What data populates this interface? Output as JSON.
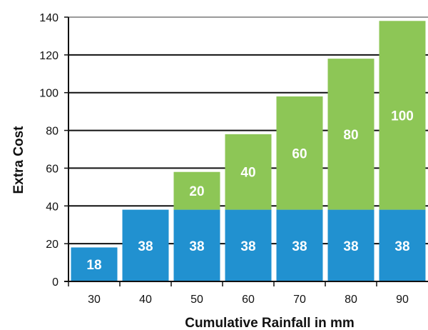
{
  "chart_data": {
    "type": "bar",
    "stacked": true,
    "categories": [
      "30",
      "40",
      "50",
      "60",
      "70",
      "80",
      "90"
    ],
    "series": [
      {
        "values": [
          18,
          38,
          38,
          38,
          38,
          38,
          38
        ],
        "labels": [
          "18",
          "38",
          "38",
          "38",
          "38",
          "38",
          "38"
        ],
        "color": "#2191d0"
      },
      {
        "values": [
          0,
          0,
          20,
          40,
          60,
          80,
          100
        ],
        "labels": [
          "",
          "",
          "20",
          "40",
          "60",
          "80",
          "100"
        ],
        "color": "#8dc656"
      }
    ],
    "title": "",
    "xlabel": "Cumulative Rainfall in mm",
    "ylabel": "Extra Cost",
    "ylim": [
      0,
      140
    ],
    "yticks": [
      "0",
      "20",
      "40",
      "60",
      "80",
      "100",
      "120",
      "140"
    ],
    "grid": true,
    "legend": "none"
  }
}
